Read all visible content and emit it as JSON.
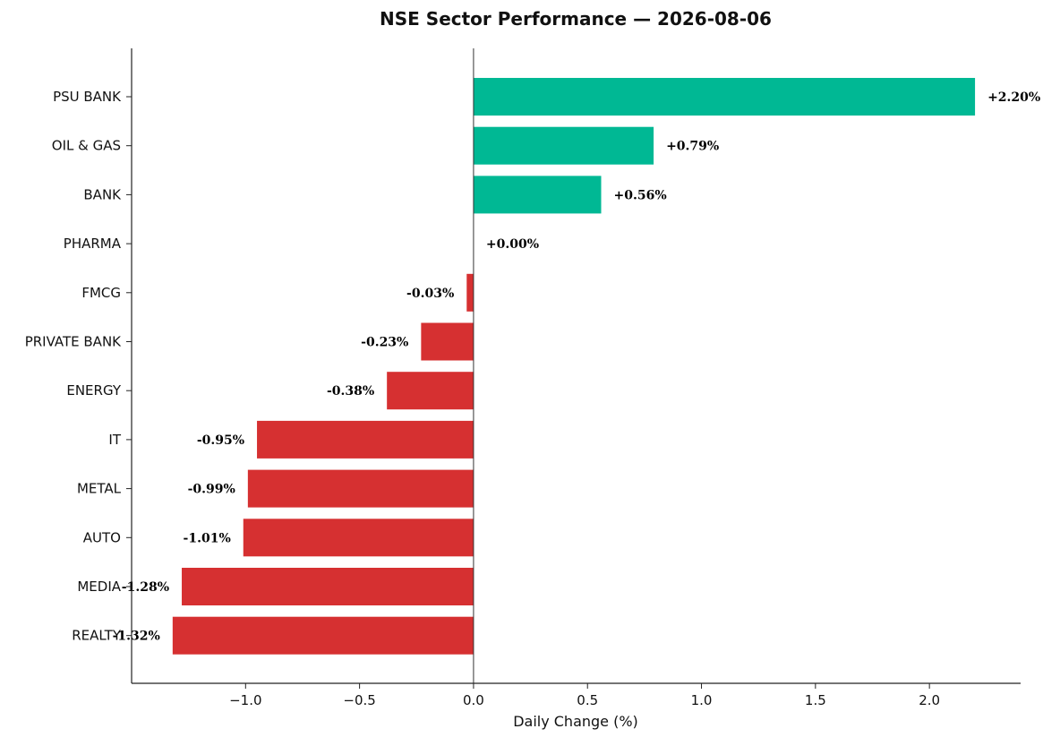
{
  "chart_data": {
    "type": "bar",
    "orientation": "horizontal",
    "title": "NSE Sector Performance — 2026-08-06",
    "xlabel": "Daily Change (%)",
    "ylabel": "",
    "xlim": [
      -1.5,
      2.4
    ],
    "xticks": [
      -1.0,
      -0.5,
      0.0,
      0.5,
      1.0,
      1.5,
      2.0
    ],
    "xtick_labels": [
      "−1.0",
      "−0.5",
      "0.0",
      "0.5",
      "1.0",
      "1.5",
      "2.0"
    ],
    "grid": false,
    "legend": "none",
    "colors": {
      "positive": "#00b894",
      "negative": "#d63031",
      "axis": "#222222",
      "zero_line": "#333333"
    },
    "categories": [
      "PSU BANK",
      "OIL & GAS",
      "BANK",
      "PHARMA",
      "FMCG",
      "PRIVATE BANK",
      "ENERGY",
      "IT",
      "METAL",
      "AUTO",
      "MEDIA",
      "REALTY"
    ],
    "values": [
      2.2,
      0.79,
      0.56,
      0.0,
      -0.03,
      -0.23,
      -0.38,
      -0.95,
      -0.99,
      -1.01,
      -1.28,
      -1.32
    ],
    "value_labels": [
      "+2.20%",
      "+0.79%",
      "+0.56%",
      "+0.00%",
      "-0.03%",
      "-0.23%",
      "-0.38%",
      "-0.95%",
      "-0.99%",
      "-1.01%",
      "-1.28%",
      "-1.32%"
    ]
  }
}
